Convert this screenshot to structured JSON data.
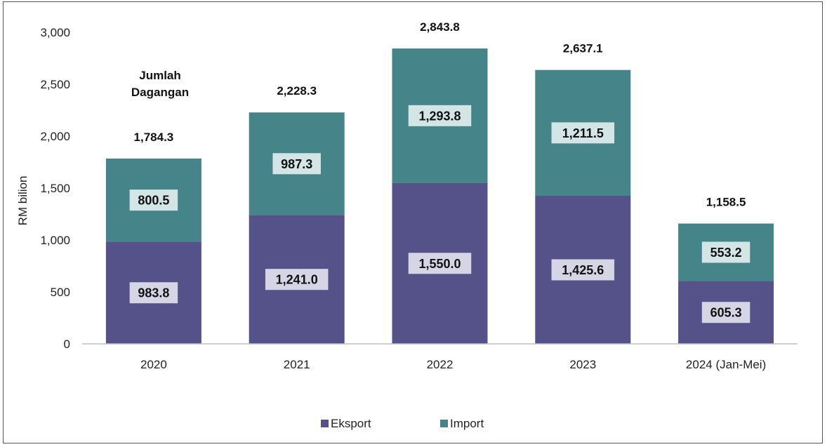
{
  "chart_data": {
    "type": "bar",
    "stacked": true,
    "title": "",
    "xlabel": "",
    "ylabel": "RM bilion",
    "ylim": [
      0,
      3000
    ],
    "yticks": [
      0,
      500,
      1000,
      1500,
      2000,
      2500,
      3000
    ],
    "ytick_labels": [
      "0",
      "500",
      "1,000",
      "1,500",
      "2,000",
      "2,500",
      "3,000"
    ],
    "categories": [
      "2020",
      "2021",
      "2022",
      "2023",
      "2024 (Jan-Mei)"
    ],
    "series": [
      {
        "name": "Eksport",
        "color": "#55528a",
        "values": [
          983.8,
          1241.0,
          1550.0,
          1425.6,
          605.3
        ],
        "labels": [
          "983.8",
          "1,241.0",
          "1,550.0",
          "1,425.6",
          "605.3"
        ]
      },
      {
        "name": "Import",
        "color": "#45858a",
        "values": [
          800.5,
          987.3,
          1293.8,
          1211.5,
          553.2
        ],
        "labels": [
          "800.5",
          "987.3",
          "1,293.8",
          "1,211.5",
          "553.2"
        ]
      }
    ],
    "totals": [
      1784.3,
      2228.3,
      2843.8,
      2637.1,
      1158.5
    ],
    "total_labels": [
      "1,784.3",
      "2,228.3",
      "2,843.8",
      "2,637.1",
      "1,158.5"
    ],
    "annotation": [
      "Jumlah",
      "Dagangan"
    ],
    "legend_position": "bottom",
    "grid": false
  }
}
